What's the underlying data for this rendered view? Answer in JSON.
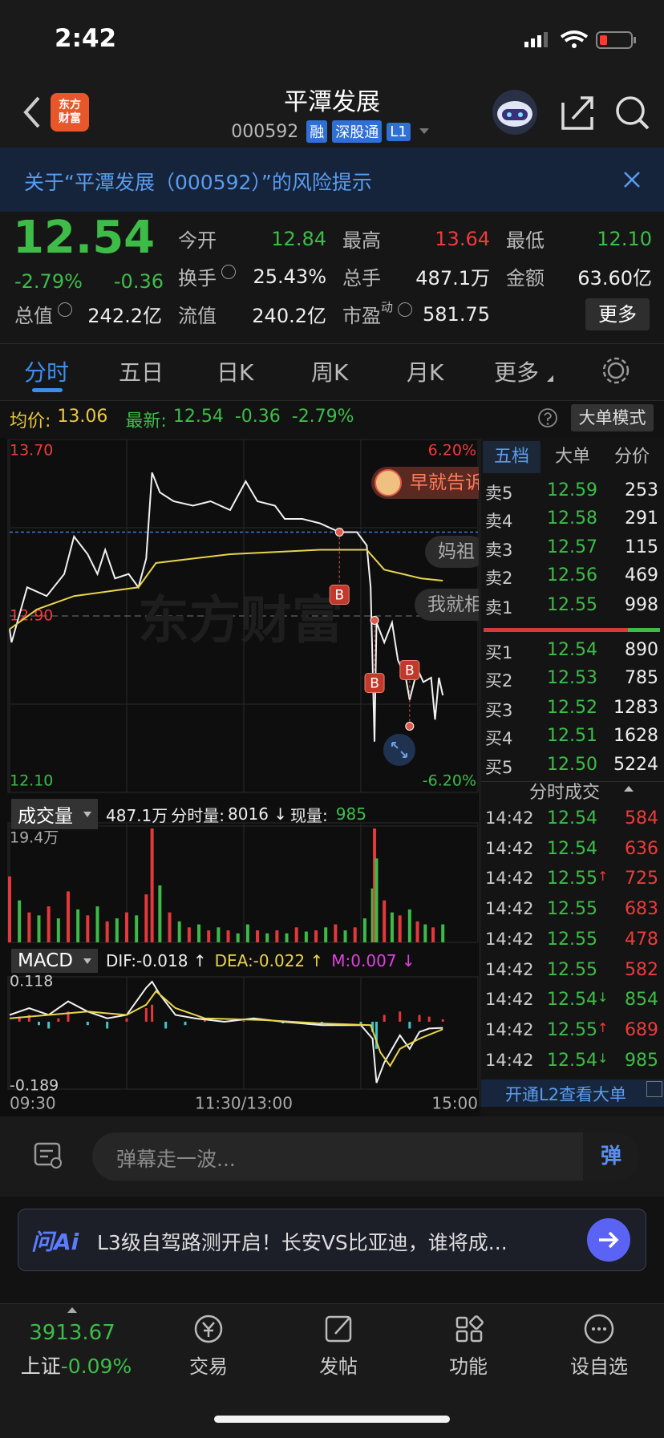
{
  "status_bar": {
    "time": "2:42"
  },
  "header": {
    "logo": [
      "东方",
      "财富"
    ],
    "title": "平潭发展",
    "code": "000592",
    "badges": [
      "融",
      "深股通",
      "L1"
    ]
  },
  "risk_notice": "关于“平潭发展（000592）”的风险提示",
  "quote": {
    "price": "12.54",
    "change_pct": "-2.79%",
    "change": "-0.36",
    "stats": [
      [
        {
          "label": "今开",
          "value": "12.84",
          "trend": "down"
        },
        {
          "label": "最高",
          "value": "13.64",
          "trend": "up"
        },
        {
          "label": "最低",
          "value": "12.10",
          "trend": "down"
        }
      ],
      [
        {
          "label": "换手",
          "value": "25.43%",
          "info": true
        },
        {
          "label": "总手",
          "value": "487.1万"
        },
        {
          "label": "金额",
          "value": "63.60亿"
        }
      ],
      [
        {
          "label": "总值",
          "value": "242.2亿",
          "info": true
        },
        {
          "label": "流值",
          "value": "240.2亿"
        },
        {
          "label": "市盈",
          "sup": "动",
          "value": "581.75",
          "info": true
        }
      ]
    ],
    "more": "更多"
  },
  "tabs": [
    "分时",
    "五日",
    "日K",
    "周K",
    "月K",
    "更多"
  ],
  "info_bar": {
    "avg_label": "均价:",
    "avg": "13.06",
    "latest_label": "最新:",
    "latest": "12.54",
    "change": "-0.36",
    "change_pct": "-2.79%",
    "mode_button": "大单模式"
  },
  "chart_data": [
    {
      "type": "line",
      "xlim": [
        0,
        240
      ],
      "xticks": [
        {
          "value": 0,
          "label": "09:30"
        },
        {
          "value": 60,
          "label": null
        },
        {
          "value": 120,
          "label": "11:30/13:00"
        },
        {
          "value": 180,
          "label": null
        },
        {
          "value": 240,
          "label": "15:00"
        }
      ],
      "ylim": [
        12.1,
        13.7
      ],
      "yticks": [
        {
          "value": 13.7,
          "label": "13.70"
        },
        {
          "value": 13.3,
          "label": null
        },
        {
          "value": 12.9,
          "label": "12.90"
        },
        {
          "value": 12.5,
          "label": null
        },
        {
          "value": 12.1,
          "label": "12.10"
        }
      ],
      "y2lim": [
        -6.2,
        6.2
      ],
      "y2ticks": [
        {
          "value": 6.2,
          "label": "6.20%"
        },
        {
          "value": -6.2,
          "label": "-6.20%"
        }
      ],
      "grid": true,
      "watermark": "东方财富",
      "cost_line": 13.28,
      "series": [
        {
          "color": "#f2f2f2",
          "x": [
            0,
            1,
            9,
            19,
            28,
            33,
            40,
            45,
            49,
            54,
            61,
            66,
            70,
            73,
            77,
            84,
            94,
            103,
            113,
            121,
            127,
            136,
            141,
            150,
            159,
            169,
            178,
            183,
            185,
            187,
            188,
            192,
            196,
            199,
            203,
            205,
            209,
            212,
            216,
            218,
            220,
            222
          ],
          "values": [
            12.84,
            12.78,
            13.03,
            12.99,
            13.09,
            13.26,
            13.18,
            13.09,
            13.2,
            13.07,
            13.09,
            13.03,
            13.16,
            13.55,
            13.46,
            13.42,
            13.4,
            13.42,
            13.38,
            13.51,
            13.42,
            13.4,
            13.34,
            13.34,
            13.32,
            13.28,
            13.28,
            13.22,
            13.03,
            12.33,
            12.87,
            12.78,
            12.87,
            12.7,
            12.62,
            12.52,
            12.66,
            12.6,
            12.62,
            12.43,
            12.62,
            12.54
          ]
        },
        {
          "color": "#e8d44d",
          "x": [
            0,
            14,
            33,
            66,
            75,
            113,
            159,
            183,
            192,
            211,
            222
          ],
          "values": [
            12.84,
            12.93,
            12.99,
            13.03,
            13.14,
            13.18,
            13.2,
            13.2,
            13.11,
            13.07,
            13.06
          ]
        }
      ],
      "markers": [
        {
          "label": "B",
          "x": 169,
          "value": 13.28
        },
        {
          "label": "B",
          "x": 187,
          "value": 12.88
        },
        {
          "label": "B",
          "x": 205,
          "value": 12.4
        }
      ]
    },
    {
      "type": "bar",
      "ylim": [
        0,
        194000
      ],
      "yticks": [
        {
          "value": 194000,
          "label": "19.4万"
        }
      ],
      "colors": {
        "up": "#e5383b",
        "down": "#3dbb47"
      },
      "x": [
        0,
        5,
        10,
        15,
        20,
        25,
        30,
        35,
        40,
        45,
        50,
        55,
        60,
        65,
        70,
        73,
        77,
        82,
        87,
        92,
        97,
        102,
        107,
        112,
        117,
        122,
        127,
        132,
        137,
        142,
        147,
        152,
        157,
        162,
        167,
        172,
        177,
        182,
        186,
        187,
        188,
        192,
        196,
        200,
        205,
        209,
        213,
        217,
        222
      ],
      "values": [
        110000,
        70000,
        50000,
        45000,
        60000,
        40000,
        85000,
        55000,
        45000,
        60000,
        35000,
        40000,
        50000,
        45000,
        80000,
        190000,
        95000,
        50000,
        35000,
        25000,
        30000,
        20000,
        25000,
        20000,
        15000,
        30000,
        20000,
        15000,
        20000,
        15000,
        25000,
        18000,
        20000,
        25000,
        30000,
        20000,
        25000,
        40000,
        90000,
        190000,
        140000,
        70000,
        50000,
        45000,
        55000,
        35000,
        30000,
        25000,
        30000
      ],
      "directions": [
        "up",
        "down",
        "up",
        "down",
        "up",
        "down",
        "up",
        "down",
        "up",
        "down",
        "up",
        "down",
        "up",
        "down",
        "up",
        "up",
        "down",
        "up",
        "down",
        "up",
        "down",
        "up",
        "down",
        "up",
        "down",
        "down",
        "up",
        "down",
        "up",
        "down",
        "up",
        "down",
        "up",
        "down",
        "up",
        "down",
        "up",
        "down",
        "down",
        "up",
        "down",
        "up",
        "down",
        "up",
        "down",
        "up",
        "down",
        "up",
        "down"
      ]
    },
    {
      "type": "macd",
      "ylim": [
        -0.189,
        0.118
      ],
      "yticks": [
        0.118,
        -0.189
      ],
      "series": [
        {
          "color": "#f2f2f2",
          "x": [
            0,
            10,
            20,
            30,
            40,
            50,
            60,
            70,
            73,
            77,
            85,
            95,
            110,
            125,
            140,
            160,
            180,
            186,
            188,
            192,
            200,
            205,
            210,
            215,
            222
          ],
          "values": [
            0.02,
            0.04,
            0.02,
            0.06,
            0.03,
            0.01,
            0.02,
            0.1,
            0.118,
            0.08,
            0.02,
            0.01,
            0,
            0.01,
            0,
            -0.01,
            -0.01,
            -0.05,
            -0.18,
            -0.12,
            -0.04,
            -0.08,
            -0.03,
            -0.02,
            -0.018
          ]
        },
        {
          "color": "#e8d44d",
          "x": [
            0,
            20,
            40,
            60,
            70,
            75,
            85,
            100,
            130,
            160,
            185,
            190,
            195,
            200,
            210,
            222
          ],
          "values": [
            0.01,
            0.02,
            0.03,
            0.02,
            0.05,
            0.09,
            0.04,
            0.01,
            0.005,
            -0.005,
            -0.01,
            -0.09,
            -0.13,
            -0.08,
            -0.05,
            -0.022
          ]
        }
      ],
      "histogram": {
        "colors": {
          "up": "#e5383b",
          "down": "#3cc8c8"
        },
        "x": [
          5,
          10,
          15,
          20,
          25,
          30,
          40,
          50,
          60,
          70,
          73,
          80,
          90,
          100,
          120,
          140,
          160,
          180,
          186,
          188,
          192,
          200,
          205,
          210,
          215,
          222
        ],
        "values": [
          0.015,
          0.02,
          -0.01,
          -0.02,
          0.01,
          0.03,
          -0.01,
          -0.02,
          0.01,
          0.04,
          0.05,
          -0.02,
          -0.01,
          0.005,
          0.003,
          -0.005,
          -0.008,
          -0.01,
          -0.03,
          -0.08,
          0.02,
          0.03,
          -0.02,
          0.02,
          0.015,
          0.007
        ]
      }
    }
  ],
  "volume_header": {
    "selector": "成交量",
    "total": "487.1万",
    "interval_label": "分时量:",
    "interval": "8016 ↓",
    "current_label": "现量:",
    "current": "985"
  },
  "macd_header": {
    "selector": "MACD",
    "dif": "DIF:-0.018 ↑",
    "dea": "DEA:-0.022 ↑",
    "m": "M:0.007 ↓"
  },
  "danmaku_bubbles": [
    "早就告诉",
    "妈祖",
    "我就相"
  ],
  "order_book": {
    "tabs": [
      "五档",
      "大单",
      "分价"
    ],
    "asks": [
      {
        "label": "卖5",
        "price": "12.59",
        "volume": "253"
      },
      {
        "label": "卖4",
        "price": "12.58",
        "volume": "291"
      },
      {
        "label": "卖3",
        "price": "12.57",
        "volume": "115"
      },
      {
        "label": "卖2",
        "price": "12.56",
        "volume": "469"
      },
      {
        "label": "卖1",
        "price": "12.55",
        "volume": "998"
      }
    ],
    "bids": [
      {
        "label": "买1",
        "price": "12.54",
        "volume": "890"
      },
      {
        "label": "买2",
        "price": "12.53",
        "volume": "785"
      },
      {
        "label": "买3",
        "price": "12.52",
        "volume": "1283"
      },
      {
        "label": "买4",
        "price": "12.51",
        "volume": "1628"
      },
      {
        "label": "买5",
        "price": "12.50",
        "volume": "5224"
      }
    ]
  },
  "trades_title": "分时成交",
  "trades": [
    {
      "time": "14:42",
      "price": "12.54",
      "volume": "584",
      "side": "buy"
    },
    {
      "time": "14:42",
      "price": "12.54",
      "volume": "636",
      "side": "buy"
    },
    {
      "time": "14:42",
      "price": "12.55",
      "arrow": "↑",
      "volume": "725",
      "side": "buy"
    },
    {
      "time": "14:42",
      "price": "12.55",
      "volume": "683",
      "side": "buy"
    },
    {
      "time": "14:42",
      "price": "12.55",
      "volume": "478",
      "side": "buy"
    },
    {
      "time": "14:42",
      "price": "12.55",
      "volume": "582",
      "side": "buy"
    },
    {
      "time": "14:42",
      "price": "12.54",
      "arrow": "↓",
      "volume": "854",
      "side": "sell"
    },
    {
      "time": "14:42",
      "price": "12.55",
      "arrow": "↑",
      "volume": "689",
      "side": "buy"
    },
    {
      "time": "14:42",
      "price": "12.54",
      "arrow": "↓",
      "volume": "985",
      "side": "sell"
    }
  ],
  "l2_banner": "开通L2查看大单",
  "danmaku": {
    "placeholder": "弹幕走一波...",
    "button": "弹"
  },
  "ai_banner": {
    "logo": "问Ai",
    "text": "L3级自驾路测开启！长安VS比亚迪，谁将成..."
  },
  "bottom_nav": {
    "index_value": "3913.67",
    "index_name": "上证",
    "index_change": "-0.09%",
    "items": [
      "交易",
      "发帖",
      "功能",
      "设自选"
    ]
  }
}
